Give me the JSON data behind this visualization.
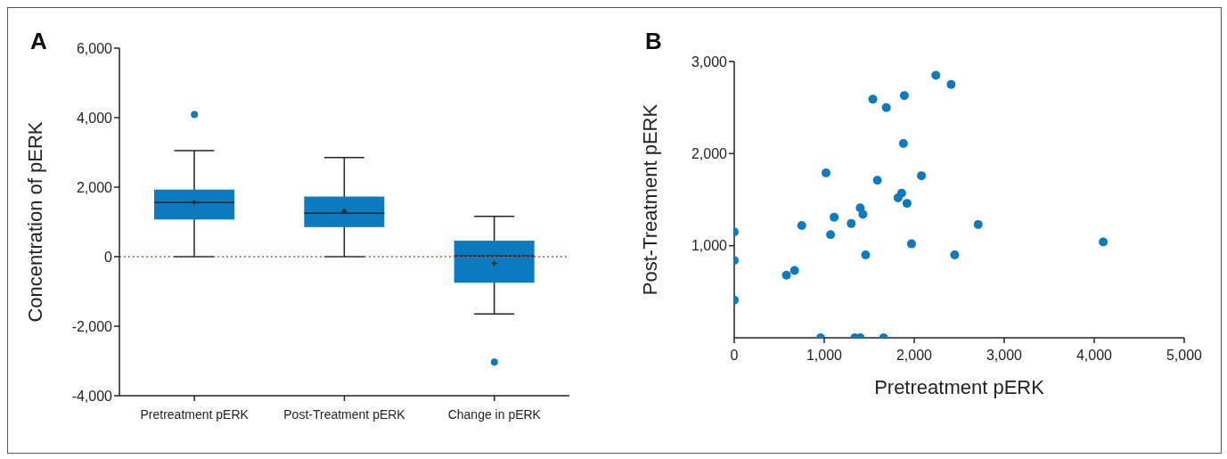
{
  "chart_data": [
    {
      "type": "box",
      "title": "A",
      "ylabel": "Concentration of pERK",
      "categories": [
        "Pretreatment pERK",
        "Post-Treatment pERK",
        "Change in pERK"
      ],
      "color": "#0a7bc1",
      "boxes": [
        {
          "low": 0,
          "q1": 1070,
          "median": 1560,
          "q3": 1930,
          "high": 3050,
          "mean": 1560,
          "outliers": [
            4090
          ]
        },
        {
          "low": 0,
          "q1": 850,
          "median": 1250,
          "q3": 1730,
          "high": 2850,
          "mean": 1310
        },
        {
          "low": -1650,
          "q1": -750,
          "median": 20,
          "q3": 460,
          "high": 1160,
          "mean": -190,
          "outliers": [
            -3030
          ]
        }
      ],
      "ylim": [
        -4000,
        6000
      ],
      "yticks": [
        {
          "value": -4000,
          "label": "-4,000"
        },
        {
          "value": -2000,
          "label": "-2,000"
        },
        0,
        {
          "value": 2000,
          "label": "2,000"
        },
        {
          "value": 4000,
          "label": "4,000"
        },
        {
          "value": 6000,
          "label": "6,000"
        }
      ],
      "ref_lines": [
        {
          "axis": "y",
          "value": 0,
          "color": "#c0504d",
          "line_style": "dotted"
        }
      ],
      "grid": false,
      "legend": false
    },
    {
      "type": "scatter",
      "title": "B",
      "xlabel": "Pretreatment pERK",
      "ylabel": "Post-Treatment pERK",
      "color": "#0a7bc1",
      "marker": "circle",
      "x": [
        2240,
        2410,
        1890,
        1540,
        1690,
        1880,
        1020,
        2080,
        1590,
        1860,
        1820,
        1920,
        1400,
        1430,
        1110,
        1300,
        750,
        1070,
        0,
        1970,
        1460,
        2450,
        0,
        670,
        580,
        0,
        960,
        1340,
        1400,
        1660,
        2710,
        4100
      ],
      "values": [
        2850,
        2750,
        2630,
        2590,
        2500,
        2110,
        1790,
        1760,
        1710,
        1570,
        1520,
        1460,
        1410,
        1340,
        1310,
        1240,
        1220,
        1120,
        1150,
        1020,
        900,
        900,
        840,
        730,
        680,
        410,
        0,
        0,
        0,
        0,
        1230,
        1040
      ],
      "xlim": [
        0,
        5000
      ],
      "xticks": [
        0,
        {
          "value": 1000,
          "label": "1,000"
        },
        {
          "value": 2000,
          "label": "2,000"
        },
        {
          "value": 3000,
          "label": "3,000"
        },
        {
          "value": 4000,
          "label": "4,000"
        },
        {
          "value": 5000,
          "label": "5,000"
        }
      ],
      "ylim": [
        0,
        3000
      ],
      "yticks": [
        {
          "value": 1000,
          "label": "1,000"
        },
        {
          "value": 2000,
          "label": "2,000"
        },
        {
          "value": 3000,
          "label": "3,000"
        }
      ],
      "grid": false,
      "legend": false
    }
  ]
}
